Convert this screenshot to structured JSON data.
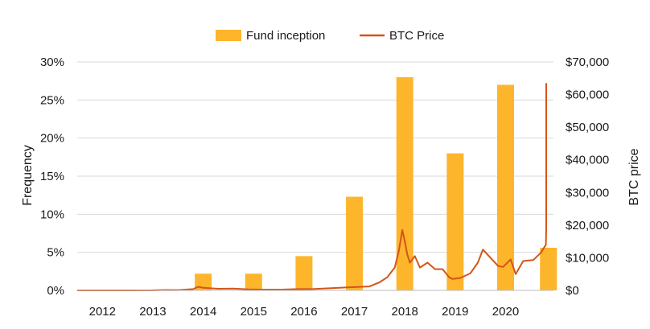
{
  "chart_data": {
    "type": "bar+line",
    "title": "",
    "legend": {
      "placement": "top-center",
      "entries": [
        {
          "name": "Fund inception",
          "kind": "bar",
          "color": "#FDB52B"
        },
        {
          "name": "BTC Price",
          "kind": "line",
          "color": "#D35518"
        }
      ]
    },
    "x": {
      "tick_labels": [
        "2012",
        "2013",
        "2014",
        "2015",
        "2016",
        "2017",
        "2018",
        "2019",
        "2020"
      ],
      "range_years": [
        2011.5,
        2020.95
      ]
    },
    "y_left": {
      "label": "Frequency",
      "ticks": [
        "0%",
        "5%",
        "10%",
        "15%",
        "20%",
        "25%",
        "30%"
      ],
      "range": [
        0,
        30
      ],
      "unit": "%"
    },
    "y_right": {
      "label": "BTC price",
      "ticks": [
        "$0",
        "$10,000",
        "$20,000",
        "$30,000",
        "$40,000",
        "$50,000",
        "$60,000",
        "$70,000"
      ],
      "range": [
        0,
        70000
      ]
    },
    "grid": "horizontal",
    "series": [
      {
        "name": "Fund inception",
        "type": "bar",
        "color": "#FDB52B",
        "points": [
          {
            "x": 2014.0,
            "value": 2.2
          },
          {
            "x": 2015.0,
            "value": 2.2
          },
          {
            "x": 2016.0,
            "value": 4.5
          },
          {
            "x": 2017.0,
            "value": 12.3
          },
          {
            "x": 2018.0,
            "value": 28.0
          },
          {
            "x": 2019.0,
            "value": 18.0
          },
          {
            "x": 2020.0,
            "value": 27.0
          },
          {
            "x": 2020.85,
            "value": 5.6
          }
        ]
      },
      {
        "name": "BTC Price",
        "type": "line",
        "color": "#D35518",
        "points": [
          [
            2011.5,
            5
          ],
          [
            2012.0,
            6
          ],
          [
            2012.5,
            7
          ],
          [
            2013.0,
            15
          ],
          [
            2013.25,
            120
          ],
          [
            2013.5,
            90
          ],
          [
            2013.8,
            400
          ],
          [
            2013.9,
            1100
          ],
          [
            2014.0,
            800
          ],
          [
            2014.3,
            500
          ],
          [
            2014.6,
            550
          ],
          [
            2014.9,
            330
          ],
          [
            2015.2,
            250
          ],
          [
            2015.6,
            260
          ],
          [
            2015.9,
            400
          ],
          [
            2016.2,
            420
          ],
          [
            2016.5,
            650
          ],
          [
            2016.9,
            950
          ],
          [
            2017.0,
            1000
          ],
          [
            2017.3,
            1200
          ],
          [
            2017.5,
            2500
          ],
          [
            2017.65,
            4000
          ],
          [
            2017.8,
            7000
          ],
          [
            2017.88,
            12000
          ],
          [
            2017.95,
            18500
          ],
          [
            2018.0,
            15000
          ],
          [
            2018.05,
            11000
          ],
          [
            2018.1,
            8500
          ],
          [
            2018.2,
            10500
          ],
          [
            2018.3,
            7000
          ],
          [
            2018.45,
            8500
          ],
          [
            2018.6,
            6500
          ],
          [
            2018.75,
            6500
          ],
          [
            2018.88,
            4000
          ],
          [
            2018.95,
            3500
          ],
          [
            2019.1,
            3800
          ],
          [
            2019.3,
            5200
          ],
          [
            2019.45,
            8500
          ],
          [
            2019.55,
            12500
          ],
          [
            2019.7,
            10000
          ],
          [
            2019.85,
            7500
          ],
          [
            2019.95,
            7200
          ],
          [
            2020.1,
            9500
          ],
          [
            2020.2,
            5000
          ],
          [
            2020.35,
            9000
          ],
          [
            2020.55,
            9300
          ],
          [
            2020.7,
            11500
          ],
          [
            2020.8,
            14000
          ],
          [
            2020.88,
            19000
          ],
          [
            2020.95,
            29000
          ],
          [
            2020.99,
            40000
          ],
          [
            2021.04,
            37000
          ],
          [
            2021.1,
            47000
          ],
          [
            2021.15,
            55000
          ],
          [
            2021.2,
            59000
          ],
          [
            2021.25,
            56000
          ],
          [
            2021.3,
            63500
          ]
        ]
      }
    ]
  }
}
